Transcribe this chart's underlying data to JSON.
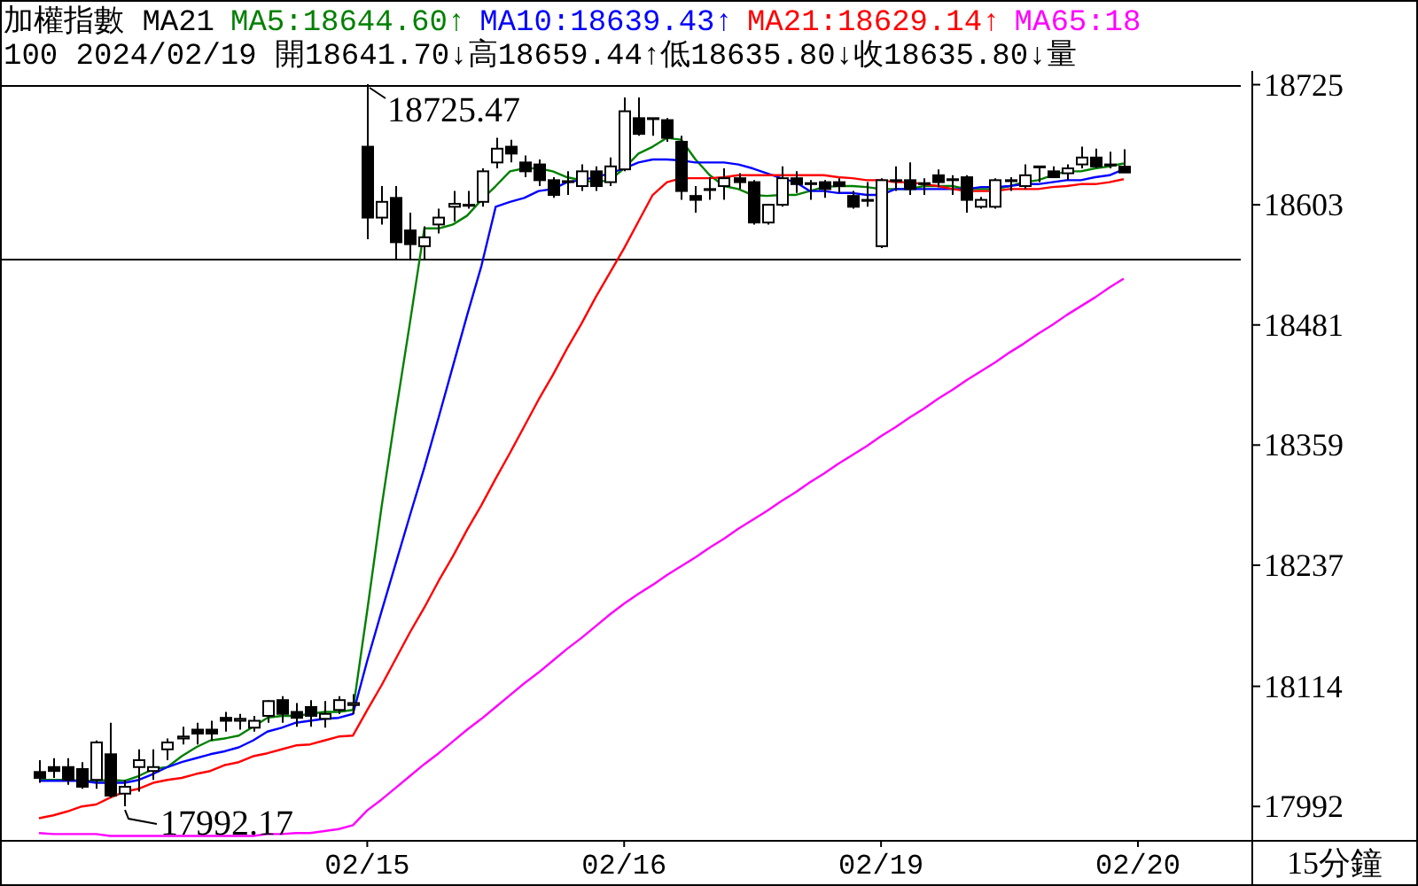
{
  "chart_data": {
    "type": "candlestick",
    "title": "加權指數 MA21",
    "subtitle": "100 2024/02/19 開18641.70↓高18659.44↑低18635.80↓收18635.80↓量",
    "categories": [
      null,
      null,
      null,
      null,
      null,
      null,
      null,
      null,
      null,
      null,
      null,
      null,
      null,
      null,
      null,
      null,
      null,
      null,
      null,
      null,
      null,
      null,
      null,
      "02/15",
      null,
      null,
      null,
      null,
      null,
      null,
      null,
      null,
      null,
      null,
      null,
      null,
      null,
      null,
      null,
      null,
      null,
      "02/16",
      null,
      null,
      null,
      null,
      null,
      null,
      null,
      null,
      null,
      null,
      null,
      null,
      null,
      null,
      null,
      null,
      null,
      "02/19",
      null,
      null,
      null,
      null,
      null,
      null,
      null,
      null,
      null,
      null,
      null,
      null,
      null,
      null,
      null,
      null,
      null,
      "02/20"
    ],
    "ohlc": [
      [
        18027,
        18039,
        18016,
        18021
      ],
      [
        18032,
        18041,
        18021,
        18028
      ],
      [
        18032,
        18041,
        18014,
        18019
      ],
      [
        18030,
        18037,
        18010,
        18012
      ],
      [
        18019,
        18059,
        18010,
        18057
      ],
      [
        18045,
        18077,
        18001,
        18003
      ],
      [
        18005,
        18019,
        17992.17,
        18012
      ],
      [
        18032,
        18050,
        18007,
        18039
      ],
      [
        18028,
        18050,
        18019,
        18032
      ],
      [
        18050,
        18061,
        18039,
        18057
      ],
      [
        18061,
        18073,
        18055,
        18063
      ],
      [
        18070,
        18077,
        18055,
        18066
      ],
      [
        18070,
        18079,
        18059,
        18066
      ],
      [
        18082,
        18088,
        18068,
        18079
      ],
      [
        18079,
        18086,
        18070,
        18081
      ],
      [
        18072,
        18084,
        18068,
        18079
      ],
      [
        18084,
        18100,
        18077,
        18099
      ],
      [
        18100,
        18104,
        18077,
        18086
      ],
      [
        18088,
        18097,
        18073,
        18082
      ],
      [
        18093,
        18100,
        18073,
        18084
      ],
      [
        18081,
        18099,
        18072,
        18086
      ],
      [
        18090,
        18104,
        18086,
        18100
      ],
      [
        18095,
        18106,
        18086,
        18097
      ],
      [
        18662,
        18725.47,
        18568,
        18590
      ],
      [
        18590,
        18622,
        18583,
        18606
      ],
      [
        18610,
        18622,
        18547,
        18565
      ],
      [
        18577,
        18595,
        18547,
        18563
      ],
      [
        18561,
        18581,
        18547,
        18570
      ],
      [
        18583,
        18599,
        18574,
        18590
      ],
      [
        18601,
        18617,
        18586,
        18604
      ],
      [
        18602,
        18617,
        18599,
        18603
      ],
      [
        18606,
        18640,
        18601,
        18637
      ],
      [
        18646,
        18671,
        18640,
        18660
      ],
      [
        18662,
        18669,
        18646,
        18655
      ],
      [
        18646,
        18653,
        18631,
        18637
      ],
      [
        18644,
        18649,
        18622,
        18628
      ],
      [
        18628,
        18631,
        18610,
        18613
      ],
      [
        18626,
        18637,
        18613,
        18627
      ],
      [
        18622,
        18644,
        18617,
        18637
      ],
      [
        18637,
        18642,
        18617,
        18622
      ],
      [
        18626,
        18651,
        18622,
        18642
      ],
      [
        18639,
        18712,
        18637,
        18698
      ],
      [
        18691,
        18712,
        18673,
        18675
      ],
      [
        18690,
        18691,
        18673,
        18691
      ],
      [
        18689,
        18691,
        18667,
        18671
      ],
      [
        18667,
        18673,
        18608,
        18617
      ],
      [
        18612,
        18622,
        18595,
        18608
      ],
      [
        18618,
        18631,
        18608,
        18619
      ],
      [
        18622,
        18640,
        18608,
        18630
      ],
      [
        18630,
        18635,
        18619,
        18626
      ],
      [
        18626,
        18628,
        18583,
        18585
      ],
      [
        18585,
        18604,
        18583,
        18603
      ],
      [
        18603,
        18642,
        18601,
        18630
      ],
      [
        18630,
        18637,
        18615,
        18624
      ],
      [
        18624,
        18628,
        18608,
        18625
      ],
      [
        18626,
        18628,
        18610,
        18619
      ],
      [
        18626,
        18630,
        18615,
        18622
      ],
      [
        18612,
        18617,
        18599,
        18601
      ],
      [
        18607,
        18626,
        18601,
        18608
      ],
      [
        18561,
        18630,
        18559,
        18628
      ],
      [
        18627,
        18642,
        18617,
        18628
      ],
      [
        18628,
        18646,
        18613,
        18619
      ],
      [
        18624,
        18630,
        18613,
        18625
      ],
      [
        18633,
        18639,
        18621,
        18626
      ],
      [
        18628,
        18633,
        18613,
        18629
      ],
      [
        18631,
        18633,
        18595,
        18608
      ],
      [
        18601,
        18611,
        18599,
        18608
      ],
      [
        18601,
        18630,
        18599,
        18628
      ],
      [
        18627,
        18631,
        18617,
        18628
      ],
      [
        18622,
        18644,
        18619,
        18633
      ],
      [
        18641,
        18642,
        18626,
        18642
      ],
      [
        18637,
        18642,
        18631,
        18631
      ],
      [
        18635,
        18644,
        18628,
        18640
      ],
      [
        18644,
        18662,
        18640,
        18651
      ],
      [
        18651,
        18660,
        18640,
        18642
      ],
      [
        18643,
        18657,
        18640,
        18644
      ],
      [
        18641.7,
        18659.44,
        18635.8,
        18635.8
      ],
      null
    ],
    "series": [
      {
        "type": "line",
        "name": "MA5:18644.60↑",
        "color": "#008000",
        "values": [
          18019,
          18019,
          18019,
          18018,
          18018,
          18019,
          18018,
          18023,
          18030,
          18032,
          18043,
          18052,
          18059,
          18061,
          18064,
          18073,
          18082,
          18084,
          18084,
          18086,
          18088,
          18088,
          18090,
          18191,
          18296,
          18392,
          18484,
          18579,
          18579,
          18583,
          18592,
          18608,
          18622,
          18637,
          18640,
          18640,
          18637,
          18631,
          18628,
          18626,
          18628,
          18640,
          18655,
          18662,
          18671,
          18669,
          18649,
          18633,
          18622,
          18619,
          18613,
          18612,
          18613,
          18613,
          18617,
          18621,
          18622,
          18622,
          18621,
          18619,
          18619,
          18619,
          18622,
          18622,
          18622,
          18619,
          18619,
          18619,
          18622,
          18626,
          18628,
          18633,
          18637,
          18637,
          18640,
          18642,
          18645,
          null
        ]
      },
      {
        "type": "line",
        "name": "MA10:18639.43↑",
        "color": "#0000ff",
        "values": [
          18018,
          18018,
          18018,
          18018,
          18016,
          18016,
          18016,
          18019,
          18025,
          18032,
          18037,
          18041,
          18045,
          18048,
          18052,
          18059,
          18068,
          18072,
          18077,
          18079,
          18081,
          18082,
          18086,
          18140,
          18190,
          18239,
          18288,
          18336,
          18387,
          18439,
          18491,
          18541,
          18601,
          18606,
          18610,
          18617,
          18619,
          18626,
          18628,
          18631,
          18635,
          18640,
          18646,
          18649,
          18649,
          18648,
          18646,
          18646,
          18646,
          18644,
          18640,
          18635,
          18630,
          18626,
          18617,
          18617,
          18615,
          18615,
          18613,
          18613,
          18619,
          18619,
          18619,
          18619,
          18619,
          18619,
          18621,
          18621,
          18622,
          18624,
          18624,
          18626,
          18628,
          18628,
          18631,
          18633,
          18639,
          null
        ]
      },
      {
        "type": "line",
        "name": "MA21:18629.14↑",
        "color": "#ff0000",
        "values": [
          17980,
          17983,
          17987,
          17992,
          17994,
          18001,
          18007,
          18010,
          18016,
          18019,
          18021,
          18025,
          18028,
          18034,
          18037,
          18043,
          18046,
          18050,
          18054,
          18055,
          18059,
          18063,
          18064,
          18090,
          18115,
          18142,
          18169,
          18194,
          18221,
          18246,
          18273,
          18298,
          18325,
          18351,
          18378,
          18405,
          18430,
          18457,
          18482,
          18509,
          18534,
          18559,
          18586,
          18613,
          18626,
          18630,
          18630,
          18630,
          18631,
          18633,
          18633,
          18633,
          18633,
          18633,
          18633,
          18633,
          18631,
          18630,
          18628,
          18628,
          18626,
          18626,
          18624,
          18622,
          18619,
          18617,
          18617,
          18617,
          18619,
          18619,
          18619,
          18621,
          18622,
          18624,
          18624,
          18626,
          18629,
          null
        ]
      },
      {
        "type": "line",
        "name": "MA65:18",
        "color": "#ff00ff",
        "values": [
          17965,
          17964,
          17964,
          17964,
          17964,
          17962,
          17962,
          17962,
          17962,
          17962,
          17962,
          17962,
          17962,
          17962,
          17962,
          17962,
          17964,
          17964,
          17965,
          17965,
          17967,
          17969,
          17973,
          17988,
          17999,
          18011,
          18023,
          18035,
          18046,
          18058,
          18070,
          18081,
          18093,
          18105,
          18117,
          18128,
          18140,
          18152,
          18163,
          18175,
          18187,
          18198,
          18208,
          18217,
          18227,
          18236,
          18245,
          18255,
          18264,
          18274,
          18283,
          18292,
          18302,
          18311,
          18321,
          18330,
          18340,
          18349,
          18358,
          18368,
          18377,
          18387,
          18396,
          18406,
          18415,
          18425,
          18434,
          18443,
          18453,
          18462,
          18472,
          18481,
          18491,
          18500,
          18509,
          18519,
          18528,
          null
        ]
      }
    ],
    "ylim": [
      17958,
      18739
    ],
    "yticks": [
      18725,
      18603,
      18481,
      18359,
      18237,
      18114,
      17992
    ],
    "ref_lines": [
      {
        "axis": "y",
        "value": 18725.47,
        "color": "#000000"
      },
      {
        "axis": "y",
        "value": 18549,
        "color": "#000000"
      }
    ],
    "annotations": [
      {
        "text": "18725.47",
        "x": "02/15",
        "y": 18725.47
      },
      "17992.17"
    ],
    "xlabel": "15分鐘",
    "legend": "top",
    "marker": "none",
    "line_style": "solid"
  }
}
